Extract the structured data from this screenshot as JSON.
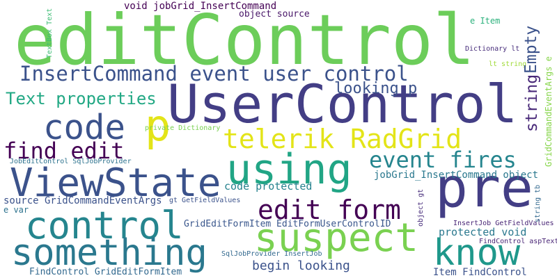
{
  "words": [
    {
      "text": "editControl",
      "color": "#6ccd5a"
    },
    {
      "text": "UserControl",
      "color": "#433e85"
    },
    {
      "text": "pre",
      "color": "#433e85"
    },
    {
      "text": "InsertCommand event user control",
      "color": "#3b528b"
    },
    {
      "text": "code",
      "color": "#3b528b"
    },
    {
      "text": "p",
      "color": "#e3e418"
    },
    {
      "text": "telerik RadGrid",
      "color": "#e3e418"
    },
    {
      "text": "using",
      "color": "#21a585"
    },
    {
      "text": "ViewState",
      "color": "#3b528b"
    },
    {
      "text": "find edit",
      "color": "#440154"
    },
    {
      "text": "event fires",
      "color": "#25858e"
    },
    {
      "text": "edit form",
      "color": "#440154"
    },
    {
      "text": "control",
      "color": "#25858e"
    },
    {
      "text": "suspect",
      "color": "#7ad151"
    },
    {
      "text": "something",
      "color": "#2a788e"
    },
    {
      "text": "know",
      "color": "#1f988b"
    },
    {
      "text": "Text properties",
      "color": "#22a884"
    },
    {
      "text": "looking p",
      "color": "#3b528b"
    },
    {
      "text": "void jobGrid_InsertCommand",
      "color": "#440154"
    },
    {
      "text": "object source",
      "color": "#481668"
    },
    {
      "text": "Empty",
      "color": "#3b528b"
    },
    {
      "text": "string",
      "color": "#482878"
    },
    {
      "text": "e Item",
      "color": "#2db27d"
    },
    {
      "text": "Dictionary lt",
      "color": "#472d7b"
    },
    {
      "text": "lt string",
      "color": "#a0da39"
    },
    {
      "text": "GridCommandEventArgs e",
      "color": "#86d549"
    },
    {
      "text": "TextBox Text",
      "color": "#3dbc74"
    },
    {
      "text": "private Dictionary",
      "color": "#7ad151"
    },
    {
      "text": "JobEditControl SqlJobProvider",
      "color": "#2c728e"
    },
    {
      "text": "jobGrid_InsertCommand object",
      "color": "#2a788e"
    },
    {
      "text": "code protected",
      "color": "#26828e"
    },
    {
      "text": "source GridCommandEventArgs",
      "color": "#3b528b"
    },
    {
      "text": "e var",
      "color": "#2c728e"
    },
    {
      "text": "gt GetFieldValues",
      "color": "#3b528b"
    },
    {
      "text": "object gt",
      "color": "#472d7b"
    },
    {
      "text": "string tb",
      "color": "#31688e"
    },
    {
      "text": "InsertJob GetFieldValues",
      "color": "#482475"
    },
    {
      "text": "GridEditFormItem EditFormUserControlID",
      "color": "#39568c"
    },
    {
      "text": "protected void",
      "color": "#2a788e"
    },
    {
      "text": "FindControl aspText",
      "color": "#482475"
    },
    {
      "text": "SqlJobProvider InsertJob",
      "color": "#31688e"
    },
    {
      "text": "begin looking",
      "color": "#3b528b"
    },
    {
      "text": "Item FindControl",
      "color": "#3b528b"
    },
    {
      "text": "FindControl GridEditFormItem",
      "color": "#31688e"
    }
  ]
}
